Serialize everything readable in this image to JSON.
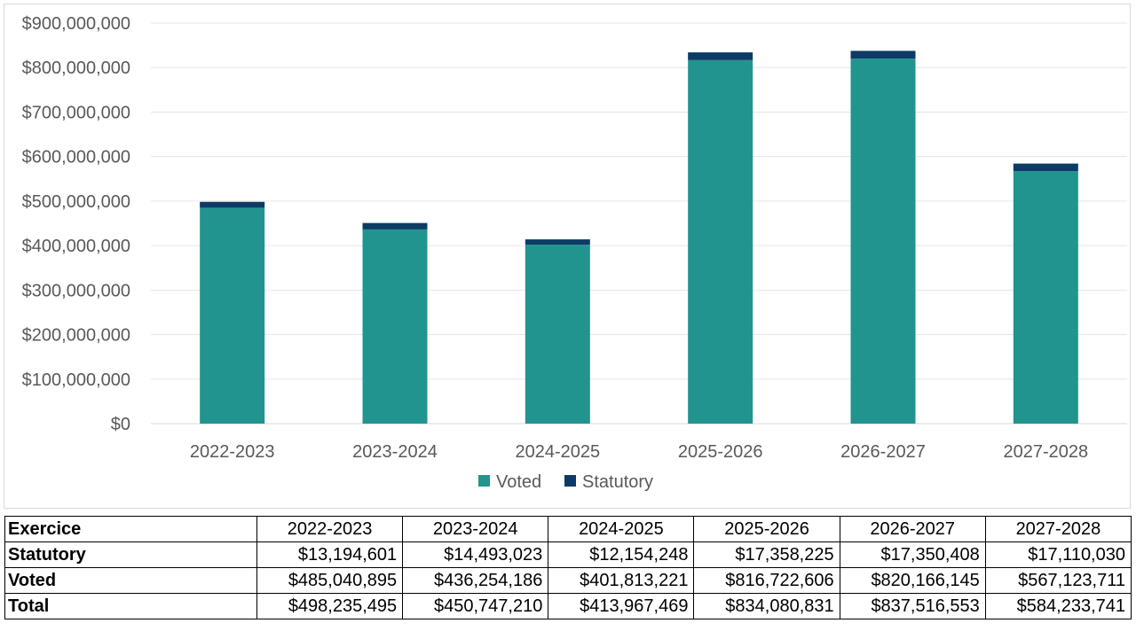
{
  "chart_data": {
    "type": "bar",
    "stacked": true,
    "categories": [
      "2022-2023",
      "2023-2024",
      "2024-2025",
      "2025-2026",
      "2026-2027",
      "2027-2028"
    ],
    "series": [
      {
        "name": "Voted",
        "color": "#21948f",
        "values": [
          485040895,
          436254186,
          401813221,
          816722606,
          820166145,
          567123711
        ]
      },
      {
        "name": "Statutory",
        "color": "#0d3b66",
        "values": [
          13194601,
          14493023,
          12154248,
          17358225,
          17350408,
          17110030
        ]
      }
    ],
    "title": "",
    "xlabel": "",
    "ylabel": "",
    "ylim": [
      0,
      900000000
    ],
    "yticks": [
      0,
      100000000,
      200000000,
      300000000,
      400000000,
      500000000,
      600000000,
      700000000,
      800000000,
      900000000
    ],
    "ytick_labels": [
      "$0",
      "$100,000,000",
      "$200,000,000",
      "$300,000,000",
      "$400,000,000",
      "$500,000,000",
      "$600,000,000",
      "$700,000,000",
      "$800,000,000",
      "$900,000,000"
    ],
    "grid": true,
    "legend_position": "bottom"
  },
  "table": {
    "header_label": "Exercice",
    "columns": [
      "2022-2023",
      "2023-2024",
      "2024-2025",
      "2025-2026",
      "2026-2027",
      "2027-2028"
    ],
    "rows": [
      {
        "label": "Statutory",
        "values": [
          "$13,194,601",
          "$14,493,023",
          "$12,154,248",
          "$17,358,225",
          "$17,350,408",
          "$17,110,030"
        ]
      },
      {
        "label": "Voted",
        "values": [
          "$485,040,895",
          "$436,254,186",
          "$401,813,221",
          "$816,722,606",
          "$820,166,145",
          "$567,123,711"
        ]
      },
      {
        "label": "Total",
        "values": [
          "$498,235,495",
          "$450,747,210",
          "$413,967,469",
          "$834,080,831",
          "$837,516,553",
          "$584,233,741"
        ]
      }
    ]
  }
}
